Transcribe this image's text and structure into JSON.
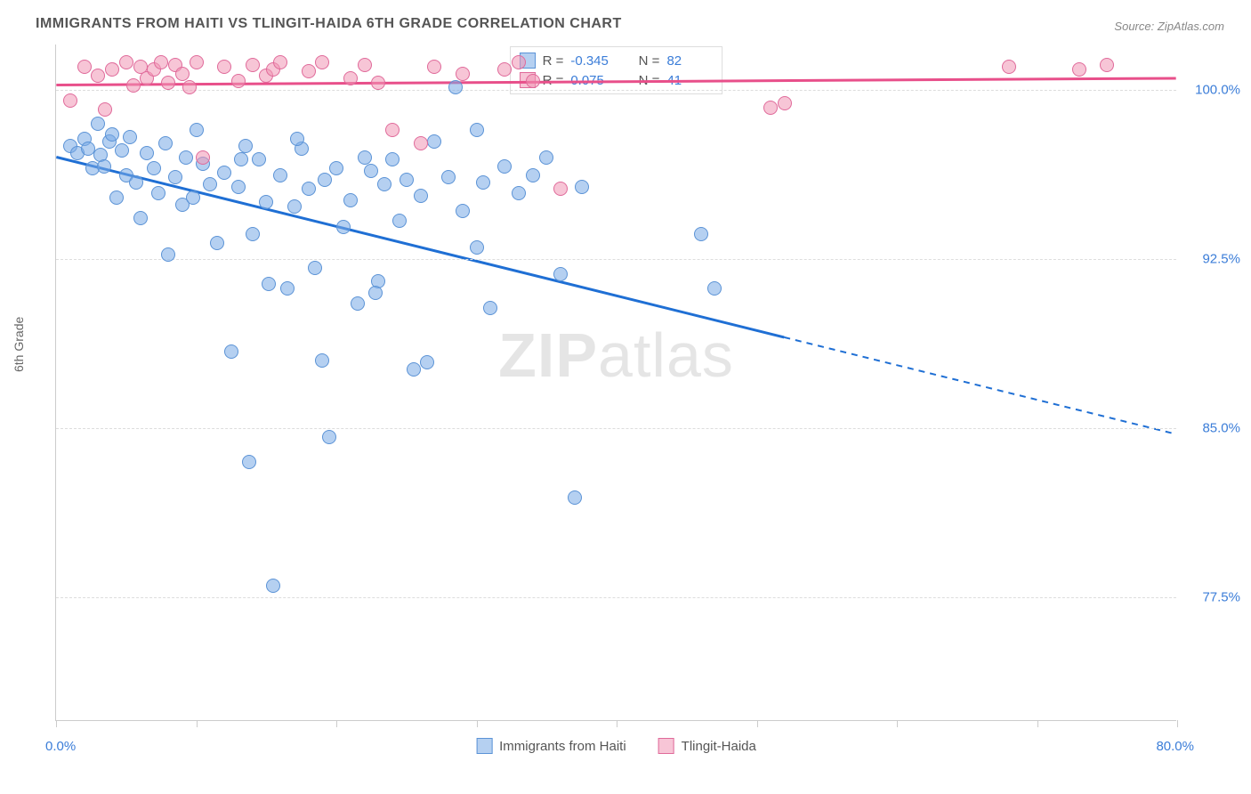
{
  "title": "IMMIGRANTS FROM HAITI VS TLINGIT-HAIDA 6TH GRADE CORRELATION CHART",
  "source_label": "Source:",
  "source_name": "ZipAtlas.com",
  "y_axis_label": "6th Grade",
  "watermark_a": "ZIP",
  "watermark_b": "atlas",
  "x_min": 0.0,
  "x_max": 80.0,
  "y_min": 72.0,
  "y_max": 102.0,
  "x_label_min": "0.0%",
  "x_label_max": "80.0%",
  "x_ticks": [
    0,
    10,
    20,
    30,
    40,
    50,
    60,
    70,
    80
  ],
  "y_grid": [
    {
      "v": 100.0,
      "label": "100.0%"
    },
    {
      "v": 92.5,
      "label": "92.5%"
    },
    {
      "v": 85.0,
      "label": "85.0%"
    },
    {
      "v": 77.5,
      "label": "77.5%"
    }
  ],
  "series": [
    {
      "name": "Immigrants from Haiti",
      "fill": "rgba(120,170,230,0.55)",
      "stroke": "#5b93d6",
      "line_color": "#1f6fd4",
      "R": "-0.345",
      "N": "82",
      "trend": {
        "x1": 0,
        "y1": 97.0,
        "x2_solid": 52,
        "y2_solid": 89.0,
        "x2": 80,
        "y2": 84.7
      },
      "marker_size": 16,
      "points": [
        [
          1,
          97.5
        ],
        [
          1.5,
          97.2
        ],
        [
          2,
          97.8
        ],
        [
          2.3,
          97.4
        ],
        [
          2.6,
          96.5
        ],
        [
          3,
          98.5
        ],
        [
          3.2,
          97.1
        ],
        [
          3.4,
          96.6
        ],
        [
          3.8,
          97.7
        ],
        [
          4,
          98
        ],
        [
          4.3,
          95.2
        ],
        [
          4.7,
          97.3
        ],
        [
          5,
          96.2
        ],
        [
          5.3,
          97.9
        ],
        [
          5.7,
          95.9
        ],
        [
          6,
          94.3
        ],
        [
          6.5,
          97.2
        ],
        [
          7,
          96.5
        ],
        [
          7.3,
          95.4
        ],
        [
          7.8,
          97.6
        ],
        [
          8,
          92.7
        ],
        [
          8.5,
          96.1
        ],
        [
          9,
          94.9
        ],
        [
          9.3,
          97
        ],
        [
          9.8,
          95.2
        ],
        [
          10,
          98.2
        ],
        [
          10.5,
          96.7
        ],
        [
          11,
          95.8
        ],
        [
          11.5,
          93.2
        ],
        [
          12,
          96.3
        ],
        [
          12.5,
          88.4
        ],
        [
          13,
          95.7
        ],
        [
          13.5,
          97.5
        ],
        [
          13.8,
          83.5
        ],
        [
          14,
          93.6
        ],
        [
          14.5,
          96.9
        ],
        [
          15,
          95
        ],
        [
          15.5,
          78.0
        ],
        [
          16,
          96.2
        ],
        [
          16.5,
          91.2
        ],
        [
          17,
          94.8
        ],
        [
          17.5,
          97.4
        ],
        [
          18,
          95.6
        ],
        [
          18.5,
          92.1
        ],
        [
          19,
          88.0
        ],
        [
          19.5,
          84.6
        ],
        [
          20,
          96.5
        ],
        [
          20.5,
          93.9
        ],
        [
          21,
          95.1
        ],
        [
          21.5,
          90.5
        ],
        [
          22,
          97
        ],
        [
          22.5,
          96.4
        ],
        [
          23,
          91.5
        ],
        [
          23.4,
          95.8
        ],
        [
          24,
          96.9
        ],
        [
          24.5,
          94.2
        ],
        [
          25,
          96
        ],
        [
          26,
          95.3
        ],
        [
          26.5,
          87.9
        ],
        [
          27,
          97.7
        ],
        [
          28,
          96.1
        ],
        [
          29,
          94.6
        ],
        [
          30,
          93
        ],
        [
          30.5,
          95.9
        ],
        [
          31,
          90.3
        ],
        [
          32,
          96.6
        ],
        [
          33,
          95.4
        ],
        [
          34,
          96.2
        ],
        [
          35,
          97
        ],
        [
          36,
          91.8
        ],
        [
          37,
          81.9
        ],
        [
          37.5,
          95.7
        ],
        [
          30,
          98.2
        ],
        [
          28.5,
          100.1
        ],
        [
          25.5,
          87.6
        ],
        [
          22.8,
          91
        ],
        [
          19.2,
          96
        ],
        [
          17.2,
          97.8
        ],
        [
          15.2,
          91.4
        ],
        [
          13.2,
          96.9
        ],
        [
          46,
          93.6
        ],
        [
          47,
          91.2
        ]
      ]
    },
    {
      "name": "Tlingit-Haida",
      "fill": "rgba(240,150,180,0.55)",
      "stroke": "#e06a9a",
      "line_color": "#e84f8a",
      "R": "0.075",
      "N": "41",
      "trend": {
        "x1": 0,
        "y1": 100.2,
        "x2_solid": 80,
        "y2_solid": 100.5,
        "x2": 80,
        "y2": 100.5
      },
      "marker_size": 16,
      "points": [
        [
          1,
          99.5
        ],
        [
          2,
          101.0
        ],
        [
          3,
          100.6
        ],
        [
          3.5,
          99.1
        ],
        [
          4,
          100.9
        ],
        [
          5,
          101.2
        ],
        [
          5.5,
          100.2
        ],
        [
          6,
          101.0
        ],
        [
          6.5,
          100.5
        ],
        [
          7,
          100.9
        ],
        [
          7.5,
          101.2
        ],
        [
          8,
          100.3
        ],
        [
          8.5,
          101.1
        ],
        [
          9,
          100.7
        ],
        [
          9.5,
          100.1
        ],
        [
          10,
          101.2
        ],
        [
          10.5,
          97.0
        ],
        [
          12,
          101.0
        ],
        [
          13,
          100.4
        ],
        [
          14,
          101.1
        ],
        [
          15,
          100.6
        ],
        [
          15.5,
          100.9
        ],
        [
          16,
          101.2
        ],
        [
          18,
          100.8
        ],
        [
          19,
          101.2
        ],
        [
          21,
          100.5
        ],
        [
          22,
          101.1
        ],
        [
          23,
          100.3
        ],
        [
          24,
          98.2
        ],
        [
          26,
          97.6
        ],
        [
          27,
          101.0
        ],
        [
          29,
          100.7
        ],
        [
          32,
          100.9
        ],
        [
          33,
          101.2
        ],
        [
          34,
          100.4
        ],
        [
          36,
          95.6
        ],
        [
          51,
          99.2
        ],
        [
          52,
          99.4
        ],
        [
          68,
          101.0
        ],
        [
          73,
          100.9
        ],
        [
          75,
          101.1
        ]
      ]
    }
  ],
  "legend": {
    "series1": "Immigrants from Haiti",
    "series2": "Tlingit-Haida"
  },
  "stats_labels": {
    "R": "R =",
    "N": "N ="
  }
}
